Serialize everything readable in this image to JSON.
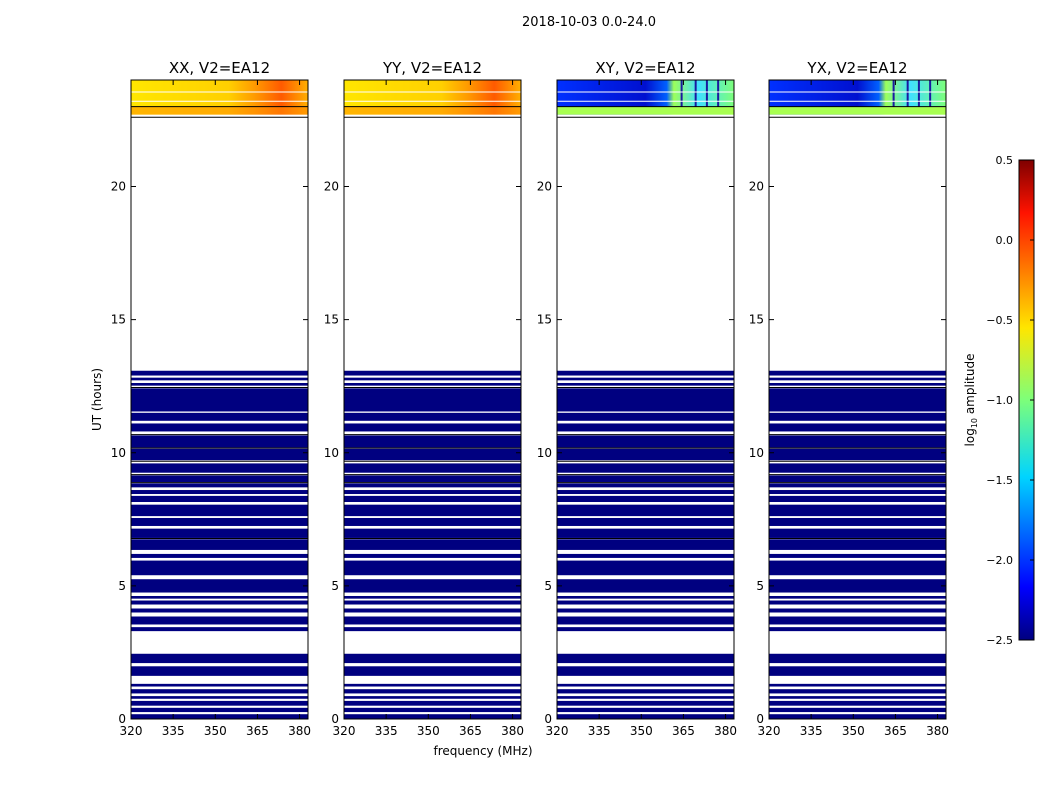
{
  "figure_title": "2018-10-03 0.0-24.0",
  "colorbar": {
    "label_pre": "log",
    "label_sub": "10",
    "label_post": " amplitude",
    "range": [
      -2.5,
      0.5
    ],
    "ticks": [
      0.5,
      0.0,
      -0.5,
      -1.0,
      -1.5,
      -2.0,
      -2.5
    ],
    "tick_labels": [
      "0.5",
      "0.0",
      "−0.5",
      "−1.0",
      "−1.5",
      "−2.0",
      "−2.5"
    ],
    "colormap": "jet"
  },
  "chart_data": [
    {
      "type": "heatmap",
      "title": "XX, V2=EA12",
      "xlabel": "",
      "ylabel": "UT (hours)",
      "xlim": [
        320,
        383
      ],
      "ylim": [
        0,
        24
      ],
      "xticks": [
        320,
        335,
        350,
        365,
        380
      ],
      "yticks": [
        0,
        5,
        10,
        15,
        20
      ],
      "top_block_level": -0.1,
      "lower_block_level": -2.5
    },
    {
      "type": "heatmap",
      "title": "YY, V2=EA12",
      "xlabel": "frequency (MHz)",
      "ylabel": "",
      "xlim": [
        320,
        383
      ],
      "ylim": [
        0,
        24
      ],
      "xticks": [
        320,
        335,
        350,
        365,
        380
      ],
      "yticks": [
        0,
        5,
        10,
        15,
        20
      ],
      "top_block_level": -0.1,
      "lower_block_level": -2.5
    },
    {
      "type": "heatmap",
      "title": "XY, V2=EA12",
      "xlabel": "",
      "ylabel": "",
      "xlim": [
        320,
        383
      ],
      "ylim": [
        0,
        24
      ],
      "xticks": [
        320,
        335,
        350,
        365,
        380
      ],
      "yticks": [
        0,
        5,
        10,
        15,
        20
      ],
      "top_block_level": -2.2,
      "lower_block_level": -2.5
    },
    {
      "type": "heatmap",
      "title": "YX, V2=EA12",
      "xlabel": "",
      "ylabel": "",
      "xlim": [
        320,
        383
      ],
      "ylim": [
        0,
        24
      ],
      "xticks": [
        320,
        335,
        350,
        365,
        380
      ],
      "yticks": [
        0,
        5,
        10,
        15,
        20
      ],
      "top_block_level": -2.2,
      "lower_block_level": -2.5
    }
  ]
}
